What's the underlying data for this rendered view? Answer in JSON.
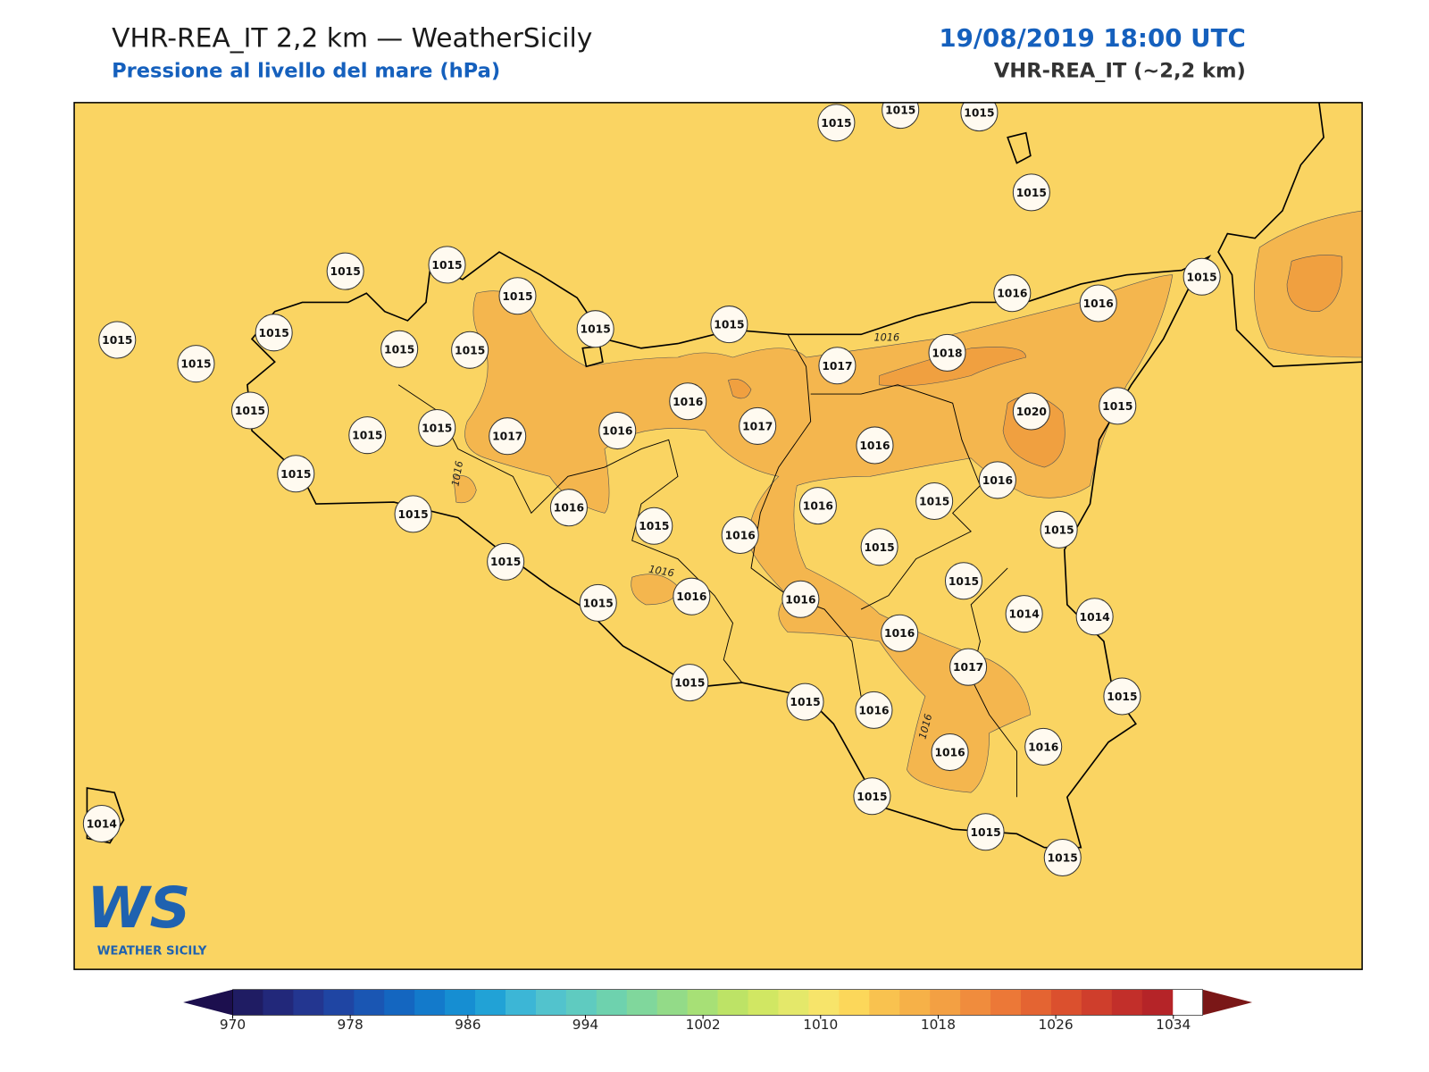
{
  "header": {
    "title": "VHR-REA_IT 2,2 km — WeatherSicily",
    "subtitle": "Pressione al livello del mare (hPa)",
    "date": "19/08/2019 18:00 UTC",
    "model": "VHR-REA_IT (~2,2 km)"
  },
  "map": {
    "background": "#fad462",
    "high_fill": "#f4b64e",
    "peak_fill": "#f0a040",
    "contour_label": "1016",
    "stations": [
      1015,
      1015,
      1015,
      1015,
      1015,
      1015,
      1015,
      1015,
      1015,
      1016,
      1016,
      1015,
      1015,
      1015,
      1015,
      1015,
      1015,
      1017,
      1018,
      1015,
      1020,
      1016,
      1017,
      1016,
      1015,
      1015,
      1015,
      1017,
      1016,
      1016,
      1015,
      1015,
      1016,
      1016,
      1015,
      1015,
      1016,
      1015,
      1015,
      1015,
      1015,
      1014,
      1014,
      1015,
      1016,
      1016,
      1016,
      1017,
      1015,
      1015,
      1016,
      1015,
      1016,
      1016,
      1015,
      1015,
      1015,
      1014
    ]
  },
  "logo": {
    "mark": "WS",
    "name": "WEATHER SICILY"
  },
  "colorbar": {
    "lim": [
      970,
      1036
    ],
    "ticks": [
      970,
      978,
      986,
      994,
      1002,
      1010,
      1018,
      1026,
      1034
    ],
    "colors": [
      "#1c0f4e",
      "#1f1c63",
      "#22287a",
      "#233690",
      "#1f45a3",
      "#1a56b3",
      "#1466c0",
      "#137acb",
      "#168ed2",
      "#21a2d6",
      "#3cb6d6",
      "#52c3cd",
      "#5fcbc0",
      "#6ed2ae",
      "#80d79c",
      "#93db88",
      "#a7e076",
      "#bde366",
      "#d1e763",
      "#e4e86a",
      "#f7e46a",
      "#fcd75a",
      "#f9c24f",
      "#f6b148",
      "#f3a043",
      "#f08c3d",
      "#ec7837",
      "#e46432",
      "#db502e",
      "#cf3e2c",
      "#c22f2a",
      "#b52428",
      "#7a1717"
    ]
  }
}
